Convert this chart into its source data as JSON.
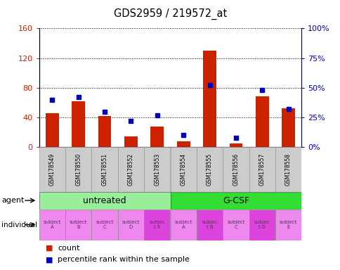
{
  "title": "GDS2959 / 219572_at",
  "samples": [
    "GSM178549",
    "GSM178550",
    "GSM178551",
    "GSM178552",
    "GSM178553",
    "GSM178554",
    "GSM178555",
    "GSM178556",
    "GSM178557",
    "GSM178558"
  ],
  "counts": [
    46,
    62,
    42,
    14,
    28,
    8,
    130,
    5,
    68,
    52
  ],
  "percentile_ranks": [
    40,
    42,
    30,
    22,
    27,
    10,
    52,
    8,
    48,
    32
  ],
  "ylim_left": [
    0,
    160
  ],
  "ylim_right": [
    0,
    100
  ],
  "yticks_left": [
    0,
    40,
    80,
    120,
    160
  ],
  "yticks_right": [
    0,
    25,
    50,
    75,
    100
  ],
  "ytick_labels_left": [
    "0",
    "40",
    "80",
    "120",
    "160"
  ],
  "ytick_labels_right": [
    "0%",
    "25%",
    "50%",
    "75%",
    "100%"
  ],
  "agent_groups": [
    {
      "label": "untreated",
      "start": 0,
      "end": 5,
      "color": "#99EE99"
    },
    {
      "label": "G-CSF",
      "start": 5,
      "end": 10,
      "color": "#33DD33"
    }
  ],
  "indiv_labels": [
    "subject\nA",
    "subject\nB",
    "subject\nC",
    "subject\nD",
    "subjec\nt E",
    "subject\nA",
    "subjec\nt B",
    "subject\nC",
    "subjec\nt D",
    "subject\nE"
  ],
  "indiv_highlight": [
    false,
    false,
    false,
    false,
    true,
    false,
    true,
    false,
    true,
    false
  ],
  "bar_color": "#CC2200",
  "dot_color": "#0000BB",
  "bar_width": 0.5,
  "tick_label_color_left": "#CC2200",
  "tick_label_color_right": "#0000BB",
  "xticklabel_bg": "#cccccc",
  "indiv_normal_color": "#EE88EE",
  "indiv_highlight_color": "#DD44DD",
  "legend_count_color": "#CC2200",
  "legend_pct_color": "#0000BB"
}
